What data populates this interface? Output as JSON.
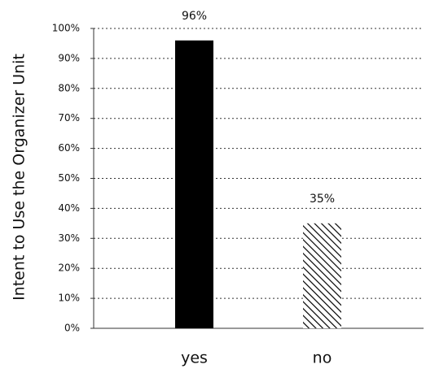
{
  "chart_data": {
    "type": "bar",
    "y_label": "Intent to Use the Organizer Unit",
    "categories": [
      "yes",
      "no"
    ],
    "values": [
      96,
      35
    ],
    "value_labels": [
      "96%",
      "35%"
    ],
    "colors": [
      "#000000",
      "#000000"
    ],
    "patterns": [
      "solid",
      "hatch"
    ],
    "ylim": [
      0,
      100
    ],
    "yticks": [
      {
        "value": 0,
        "label": "0%"
      },
      {
        "value": 10,
        "label": "10%"
      },
      {
        "value": 20,
        "label": "20%"
      },
      {
        "value": 30,
        "label": "30%"
      },
      {
        "value": 40,
        "label": "40%"
      },
      {
        "value": 50,
        "label": "50%"
      },
      {
        "value": 60,
        "label": "60%"
      },
      {
        "value": 70,
        "label": "70%"
      },
      {
        "value": 80,
        "label": "80%"
      },
      {
        "value": 90,
        "label": "90%"
      },
      {
        "value": 100,
        "label": "100%"
      }
    ],
    "grid": true
  }
}
